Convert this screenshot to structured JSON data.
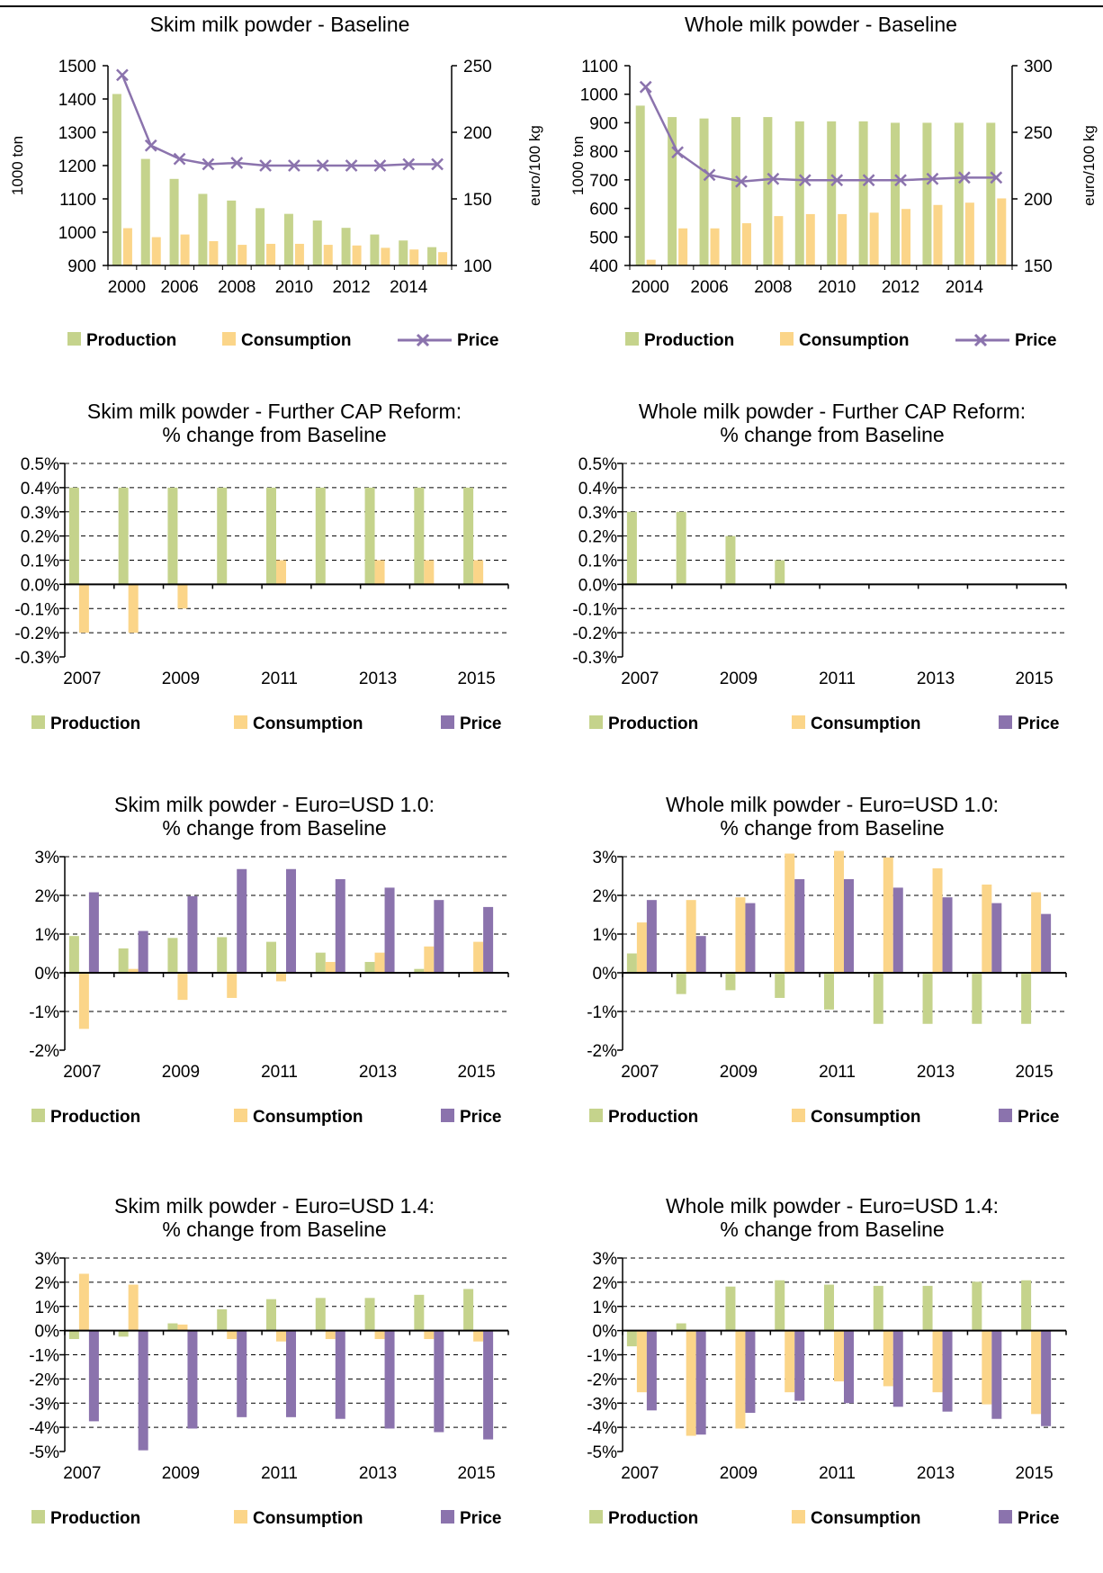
{
  "colors": {
    "production": "#c5d38c",
    "consumption": "#fbd589",
    "price": "#8b73ad"
  },
  "legend": {
    "production": "Production",
    "consumption": "Consumption",
    "price": "Price"
  },
  "chart_data": [
    {
      "id": "smp_base",
      "type": "bar",
      "title": [
        "Skim milk powder - Baseline"
      ],
      "ylabel": "1000 ton",
      "y2label": "euro/100 kg",
      "x_ticks": [
        "2000",
        "2006",
        "2008",
        "2010",
        "2012",
        "2014"
      ],
      "ylim": [
        900,
        1500
      ],
      "yticks": [
        "900",
        "1000",
        "1100",
        "1200",
        "1300",
        "1400",
        "1500"
      ],
      "y2lim": [
        100,
        250
      ],
      "y2ticks": [
        "100",
        "150",
        "200",
        "250"
      ],
      "categories": [
        "2000",
        "2005",
        "2006",
        "2007",
        "2008",
        "2009",
        "2010",
        "2011",
        "2012",
        "2013",
        "2014",
        "2015"
      ],
      "series": [
        {
          "name": "Production",
          "type": "bar",
          "values": [
            1415,
            1220,
            1160,
            1115,
            1095,
            1072,
            1055,
            1035,
            1013,
            993,
            975,
            955
          ]
        },
        {
          "name": "Consumption",
          "type": "bar",
          "values": [
            1012,
            985,
            993,
            973,
            962,
            965,
            965,
            962,
            960,
            953,
            948,
            940
          ]
        },
        {
          "name": "Price",
          "type": "line",
          "axis": "right",
          "values": [
            243,
            190,
            180,
            176,
            177,
            175,
            175,
            175,
            175,
            175,
            176,
            176
          ]
        }
      ]
    },
    {
      "id": "wmp_base",
      "type": "bar",
      "title": [
        "Whole milk powder - Baseline"
      ],
      "ylabel": "1000 ton",
      "y2label": "euro/100 kg",
      "x_ticks": [
        "2000",
        "2006",
        "2008",
        "2010",
        "2012",
        "2014"
      ],
      "ylim": [
        400,
        1100
      ],
      "yticks": [
        "400",
        "500",
        "600",
        "700",
        "800",
        "900",
        "1000",
        "1100"
      ],
      "y2lim": [
        150,
        300
      ],
      "y2ticks": [
        "150",
        "200",
        "250",
        "300"
      ],
      "categories": [
        "2000",
        "2005",
        "2006",
        "2007",
        "2008",
        "2009",
        "2010",
        "2011",
        "2012",
        "2013",
        "2014",
        "2015"
      ],
      "series": [
        {
          "name": "Production",
          "type": "bar",
          "values": [
            960,
            920,
            915,
            920,
            920,
            905,
            905,
            905,
            900,
            900,
            900,
            900
          ]
        },
        {
          "name": "Consumption",
          "type": "bar",
          "values": [
            420,
            530,
            530,
            548,
            573,
            580,
            580,
            585,
            598,
            612,
            620,
            635
          ]
        },
        {
          "name": "Price",
          "type": "line",
          "axis": "right",
          "values": [
            284,
            235,
            218,
            213,
            215,
            214,
            214,
            214,
            214,
            215,
            216,
            216
          ]
        }
      ]
    },
    {
      "id": "smp_cap",
      "type": "bar",
      "title": [
        "Skim milk powder - Further CAP Reform:",
        "% change from Baseline"
      ],
      "x_ticks": [
        "2007",
        "2009",
        "2011",
        "2013",
        "2015"
      ],
      "ylim": [
        -0.3,
        0.5
      ],
      "yticks": [
        "-0.3%",
        "-0.2%",
        "-0.1%",
        "0.0%",
        "0.1%",
        "0.2%",
        "0.3%",
        "0.4%",
        "0.5%"
      ],
      "categories": [
        "2007",
        "2008",
        "2009",
        "2010",
        "2011",
        "2012",
        "2013",
        "2014",
        "2015"
      ],
      "series": [
        {
          "name": "Production",
          "values": [
            0.4,
            0.4,
            0.4,
            0.4,
            0.4,
            0.4,
            0.4,
            0.4,
            0.4
          ]
        },
        {
          "name": "Consumption",
          "values": [
            -0.2,
            -0.2,
            -0.1,
            0,
            0.1,
            0,
            0.1,
            0.1,
            0.1
          ]
        },
        {
          "name": "Price",
          "values": [
            0,
            0,
            0,
            0,
            0,
            0,
            0,
            0,
            0
          ]
        }
      ]
    },
    {
      "id": "wmp_cap",
      "type": "bar",
      "title": [
        "Whole milk powder - Further CAP Reform:",
        "% change from Baseline"
      ],
      "x_ticks": [
        "2007",
        "2009",
        "2011",
        "2013",
        "2015"
      ],
      "ylim": [
        -0.3,
        0.5
      ],
      "yticks": [
        "-0.3%",
        "-0.2%",
        "-0.1%",
        "0.0%",
        "0.1%",
        "0.2%",
        "0.3%",
        "0.4%",
        "0.5%"
      ],
      "categories": [
        "2007",
        "2008",
        "2009",
        "2010",
        "2011",
        "2012",
        "2013",
        "2014",
        "2015"
      ],
      "series": [
        {
          "name": "Production",
          "values": [
            0.3,
            0.3,
            0.2,
            0.1,
            0,
            0,
            0,
            0,
            0
          ]
        },
        {
          "name": "Consumption",
          "values": [
            0,
            0,
            0,
            0,
            0,
            0,
            0,
            0,
            0
          ]
        },
        {
          "name": "Price",
          "values": [
            0,
            0,
            0,
            0,
            0,
            0,
            0,
            0,
            0
          ]
        }
      ]
    },
    {
      "id": "smp_usd10",
      "type": "bar",
      "title": [
        "Skim milk powder - Euro=USD 1.0:",
        "% change from Baseline"
      ],
      "x_ticks": [
        "2007",
        "2009",
        "2011",
        "2013",
        "2015"
      ],
      "ylim": [
        -2,
        3
      ],
      "yticks": [
        "-2%",
        "-1%",
        "0%",
        "1%",
        "2%",
        "3%"
      ],
      "categories": [
        "2007",
        "2008",
        "2009",
        "2010",
        "2011",
        "2012",
        "2013",
        "2014",
        "2015"
      ],
      "series": [
        {
          "name": "Production",
          "values": [
            0.95,
            0.63,
            0.9,
            0.92,
            0.8,
            0.52,
            0.28,
            0.1,
            0
          ]
        },
        {
          "name": "Consumption",
          "values": [
            -1.45,
            0.1,
            -0.7,
            -0.65,
            -0.22,
            0.28,
            0.52,
            0.68,
            0.8
          ]
        },
        {
          "name": "Price",
          "values": [
            2.08,
            1.08,
            1.98,
            2.68,
            2.68,
            2.42,
            2.2,
            1.88,
            1.7
          ]
        }
      ]
    },
    {
      "id": "wmp_usd10",
      "type": "bar",
      "title": [
        "Whole milk powder - Euro=USD 1.0:",
        "% change from Baseline"
      ],
      "x_ticks": [
        "2007",
        "2009",
        "2011",
        "2013",
        "2015"
      ],
      "ylim": [
        -2,
        3
      ],
      "yticks": [
        "-2%",
        "-1%",
        "0%",
        "1%",
        "2%",
        "3%"
      ],
      "categories": [
        "2007",
        "2008",
        "2009",
        "2010",
        "2011",
        "2012",
        "2013",
        "2014",
        "2015"
      ],
      "series": [
        {
          "name": "Production",
          "values": [
            0.5,
            -0.55,
            -0.45,
            -0.65,
            -0.95,
            -1.32,
            -1.32,
            -1.32,
            -1.32
          ]
        },
        {
          "name": "Consumption",
          "values": [
            1.3,
            1.88,
            1.95,
            3.08,
            3.15,
            2.98,
            2.7,
            2.28,
            2.08
          ]
        },
        {
          "name": "Price",
          "values": [
            1.88,
            0.95,
            1.8,
            2.42,
            2.42,
            2.2,
            1.95,
            1.8,
            1.52
          ]
        }
      ]
    },
    {
      "id": "smp_usd14",
      "type": "bar",
      "title": [
        "Skim milk powder - Euro=USD 1.4:",
        "% change from Baseline"
      ],
      "x_ticks": [
        "2007",
        "2009",
        "2011",
        "2013",
        "2015"
      ],
      "ylim": [
        -5,
        3
      ],
      "yticks": [
        "-5%",
        "-4%",
        "-3%",
        "-2%",
        "-1%",
        "0%",
        "1%",
        "2%",
        "3%"
      ],
      "categories": [
        "2007",
        "2008",
        "2009",
        "2010",
        "2011",
        "2012",
        "2013",
        "2014",
        "2015"
      ],
      "series": [
        {
          "name": "Production",
          "values": [
            -0.35,
            -0.25,
            0.3,
            0.88,
            1.3,
            1.35,
            1.35,
            1.48,
            1.72
          ]
        },
        {
          "name": "Consumption",
          "values": [
            2.35,
            1.9,
            0.25,
            -0.35,
            -0.45,
            -0.35,
            -0.35,
            -0.35,
            -0.45
          ]
        },
        {
          "name": "Price",
          "values": [
            -3.75,
            -4.95,
            -4.05,
            -3.58,
            -3.58,
            -3.65,
            -4.05,
            -4.2,
            -4.5
          ]
        }
      ]
    },
    {
      "id": "wmp_usd14",
      "type": "bar",
      "title": [
        "Whole milk powder - Euro=USD 1.4:",
        "% change from Baseline"
      ],
      "x_ticks": [
        "2007",
        "2009",
        "2011",
        "2013",
        "2015"
      ],
      "ylim": [
        -5,
        3
      ],
      "yticks": [
        "-5%",
        "-4%",
        "-3%",
        "-2%",
        "-1%",
        "0%",
        "1%",
        "2%",
        "3%"
      ],
      "categories": [
        "2007",
        "2008",
        "2009",
        "2010",
        "2011",
        "2012",
        "2013",
        "2014",
        "2015"
      ],
      "series": [
        {
          "name": "Production",
          "values": [
            -0.65,
            0.3,
            1.82,
            2.08,
            1.9,
            1.85,
            1.85,
            2.02,
            2.08
          ]
        },
        {
          "name": "Consumption",
          "values": [
            -2.55,
            -4.35,
            -4.05,
            -2.55,
            -2.1,
            -2.3,
            -2.55,
            -3.05,
            -3.45
          ]
        },
        {
          "name": "Price",
          "values": [
            -3.3,
            -4.3,
            -3.4,
            -2.9,
            -3.0,
            -3.15,
            -3.35,
            -3.65,
            -3.95
          ]
        }
      ]
    }
  ]
}
